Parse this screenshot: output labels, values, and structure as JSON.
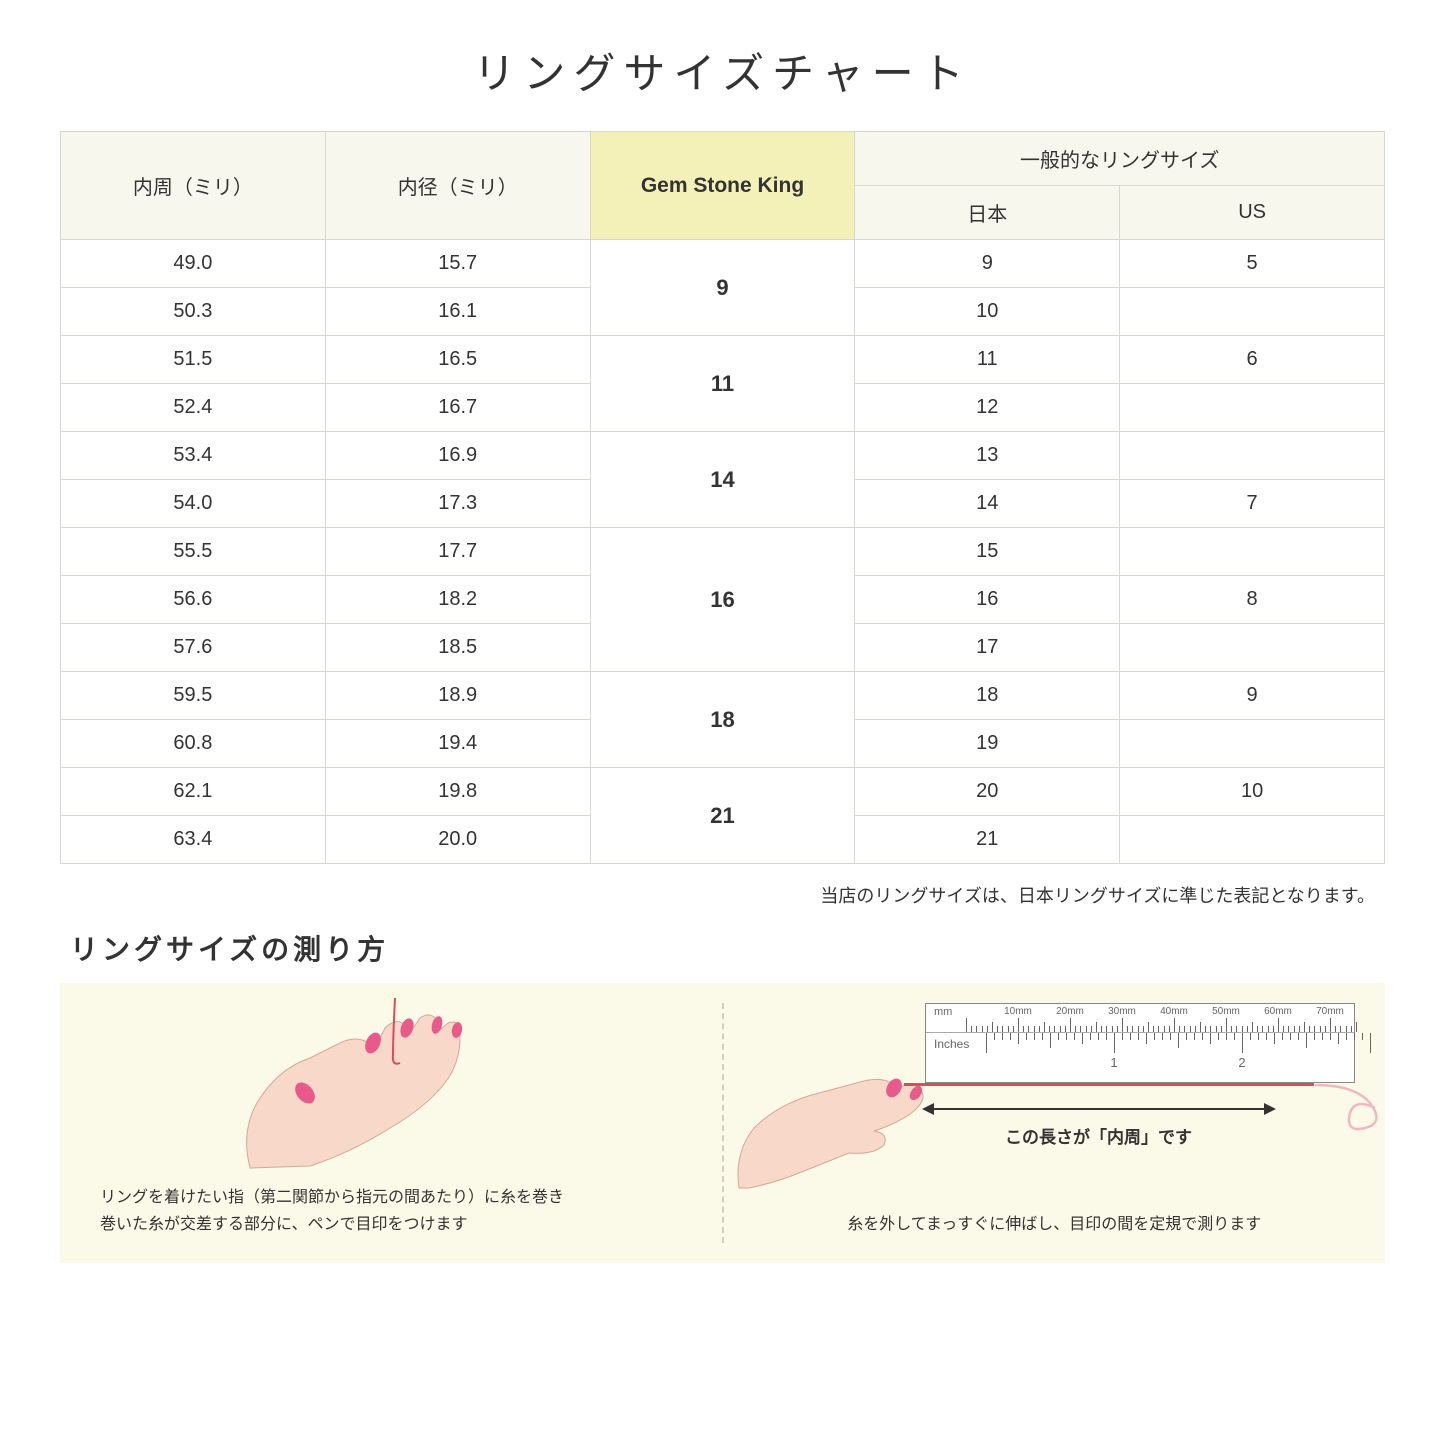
{
  "title": "リングサイズチャート",
  "table": {
    "headers": {
      "circum": "内周（ミリ）",
      "diameter": "内径（ミリ）",
      "gsk": "Gem Stone King",
      "general": "一般的なリングサイズ",
      "jp": "日本",
      "us": "US"
    },
    "groups": [
      {
        "gsk": "9",
        "rows": [
          {
            "c": "49.0",
            "d": "15.7",
            "jp": "9",
            "us": "5"
          },
          {
            "c": "50.3",
            "d": "16.1",
            "jp": "10",
            "us": ""
          }
        ]
      },
      {
        "gsk": "11",
        "rows": [
          {
            "c": "51.5",
            "d": "16.5",
            "jp": "11",
            "us": "6"
          },
          {
            "c": "52.4",
            "d": "16.7",
            "jp": "12",
            "us": ""
          }
        ]
      },
      {
        "gsk": "14",
        "rows": [
          {
            "c": "53.4",
            "d": "16.9",
            "jp": "13",
            "us": ""
          },
          {
            "c": "54.0",
            "d": "17.3",
            "jp": "14",
            "us": "7"
          }
        ]
      },
      {
        "gsk": "16",
        "rows": [
          {
            "c": "55.5",
            "d": "17.7",
            "jp": "15",
            "us": ""
          },
          {
            "c": "56.6",
            "d": "18.2",
            "jp": "16",
            "us": "8"
          },
          {
            "c": "57.6",
            "d": "18.5",
            "jp": "17",
            "us": ""
          }
        ]
      },
      {
        "gsk": "18",
        "rows": [
          {
            "c": "59.5",
            "d": "18.9",
            "jp": "18",
            "us": "9"
          },
          {
            "c": "60.8",
            "d": "19.4",
            "jp": "19",
            "us": ""
          }
        ]
      },
      {
        "gsk": "21",
        "rows": [
          {
            "c": "62.1",
            "d": "19.8",
            "jp": "20",
            "us": "10"
          },
          {
            "c": "63.4",
            "d": "20.0",
            "jp": "21",
            "us": ""
          }
        ]
      }
    ]
  },
  "note": "当店のリングサイズは、日本リングサイズに準じた表記となります。",
  "howto": {
    "title": "リングサイズの測り方",
    "left_text": "リングを着けたい指（第二関節から指元の間あたり）に糸を巻き\n巻いた糸が交差する部分に、ペンで目印をつけます",
    "right_text": "糸を外してまっすぐに伸ばし、目印の間を定規で測ります",
    "arrow_label": "この長さが「内周」です",
    "ruler_mm_label": "mm",
    "ruler_in_label": "Inches",
    "mm_marks": [
      "10mm",
      "20mm",
      "30mm",
      "40mm",
      "50mm",
      "60mm",
      "70mm"
    ],
    "in_marks": [
      "1",
      "2"
    ]
  },
  "colors": {
    "header_bg": "#f7f7ed",
    "gsk_bg": "#f3f0b8",
    "border": "#d8d8d0",
    "howto_bg": "#fbf9e8",
    "thread": "#d94c5c",
    "skin": "#f8d8c8",
    "nail": "#e85a8a"
  }
}
